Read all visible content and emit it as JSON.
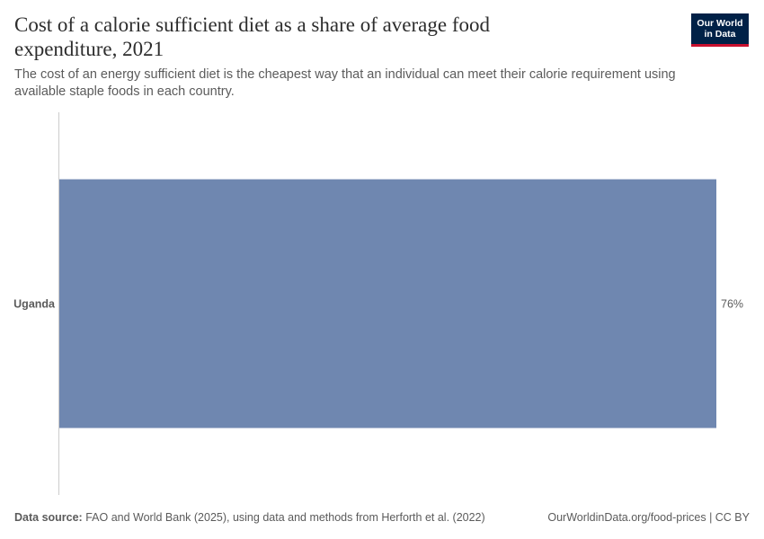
{
  "header": {
    "title": "Cost of a calorie sufficient diet as a share of average food expenditure, 2021",
    "subtitle": "The cost of an energy sufficient diet is the cheapest way that an individual can meet their calorie requirement using available staple foods in each country.",
    "logo_line1": "Our World",
    "logo_line2": "in Data"
  },
  "footer": {
    "source_label": "Data source:",
    "source_text": "FAO and World Bank (2025), using data and methods from Herforth et al. (2022)",
    "link_text": "OurWorldinData.org/food-prices | CC BY"
  },
  "chart_data": {
    "type": "bar",
    "orientation": "horizontal",
    "title": "Cost of a calorie sufficient diet as a share of average food expenditure, 2021",
    "categories": [
      "Uganda"
    ],
    "values": [
      76
    ],
    "value_labels": [
      "76%"
    ],
    "unit": "%",
    "xlim": [
      0,
      76
    ],
    "grid": false,
    "colors": {
      "bar": "#6f87b0",
      "axis": "#cccccc"
    }
  }
}
